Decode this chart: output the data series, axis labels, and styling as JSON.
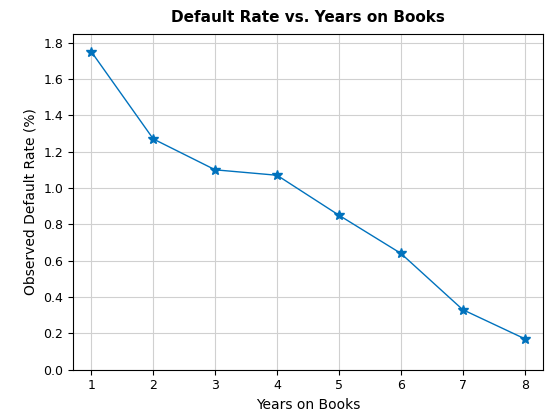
{
  "x": [
    1,
    2,
    3,
    4,
    5,
    6,
    7,
    8
  ],
  "y": [
    1.75,
    1.27,
    1.1,
    1.07,
    0.85,
    0.64,
    0.33,
    0.17
  ],
  "title": "Default Rate vs. Years on Books",
  "xlabel": "Years on Books",
  "ylabel": "Observed Default Rate (%)",
  "line_color": "#0072BD",
  "marker": "*",
  "marker_size": 7,
  "linewidth": 1.0,
  "xlim": [
    0.7,
    8.3
  ],
  "ylim": [
    0,
    1.85
  ],
  "xticks": [
    1,
    2,
    3,
    4,
    5,
    6,
    7,
    8
  ],
  "yticks": [
    0,
    0.2,
    0.4,
    0.6,
    0.8,
    1.0,
    1.2,
    1.4,
    1.6,
    1.8
  ],
  "grid": true,
  "background_color": "#ffffff",
  "title_fontsize": 11,
  "label_fontsize": 10,
  "tick_fontsize": 9
}
